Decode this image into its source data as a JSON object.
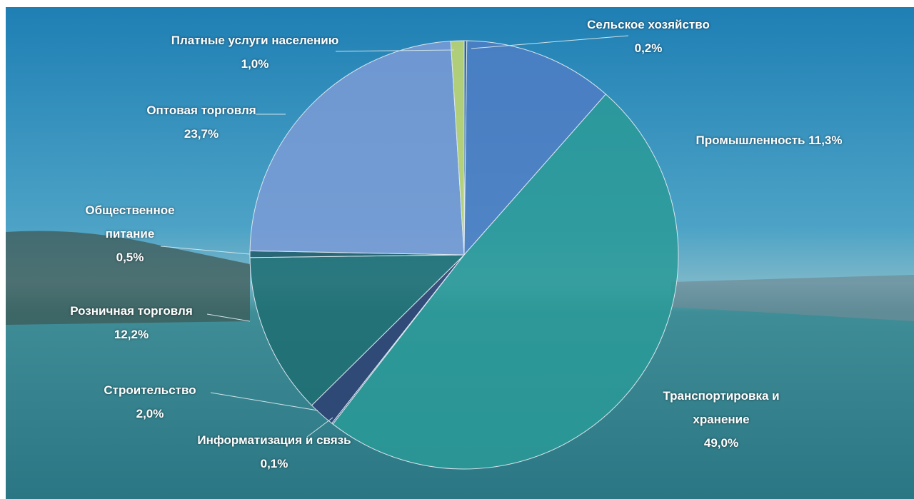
{
  "chart_data": {
    "type": "pie",
    "categories": [
      "Сельское хозяйство",
      "Промышленность",
      "Транспортировка и хранение",
      "Информатизация и связь",
      "Строительство",
      "Розничная торговля",
      "Общественное питание",
      "Оптовая торговля",
      "Платные услуги населению"
    ],
    "values": [
      0.2,
      11.3,
      49.0,
      0.1,
      2.0,
      12.2,
      0.5,
      23.7,
      1.0
    ],
    "value_labels": [
      "0,2%",
      "11,3%",
      "49,0%",
      "0,1%",
      "2,0%",
      "12,2%",
      "0,5%",
      "23,7%",
      "1,0%"
    ],
    "colors": [
      "#2b5f86",
      "#4f7ec4",
      "#2a9a98",
      "#2e3f72",
      "#2e3f72",
      "#1d6d72",
      "#1f5a68",
      "#7b9bd6",
      "#c8d96e"
    ]
  }
}
